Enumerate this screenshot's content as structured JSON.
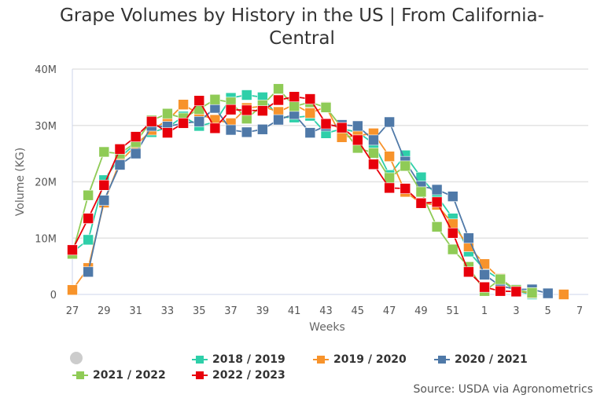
{
  "title_lines": [
    "Grape Volumes by History in the US | From California-",
    "Central"
  ],
  "source": "Source: USDA via Agronometrics",
  "chart_data": {
    "type": "line",
    "title": "Grape Volumes by History in the US | From California-Central",
    "xlabel": "Weeks",
    "ylabel": "Volume (KG)",
    "ylim": [
      0,
      40000000
    ],
    "yticks": [
      0,
      10000000,
      20000000,
      30000000,
      40000000
    ],
    "ytick_labels": [
      "0",
      "10M",
      "20M",
      "30M",
      "40M"
    ],
    "x": [
      27,
      28,
      29,
      30,
      31,
      32,
      33,
      34,
      35,
      36,
      37,
      38,
      39,
      40,
      41,
      42,
      43,
      44,
      45,
      46,
      47,
      48,
      49,
      50,
      51,
      52,
      1,
      2,
      3,
      4,
      5,
      6,
      7
    ],
    "xtick_labels": [
      "27",
      "29",
      "31",
      "33",
      "35",
      "37",
      "39",
      "41",
      "43",
      "45",
      "47",
      "49",
      "51",
      "1",
      "3",
      "5",
      "7"
    ],
    "grid": "horizontal",
    "legend_position": "bottom",
    "series": [
      {
        "name": "2018 / 2019",
        "color": "#2ecfa9",
        "values": [
          7.5,
          9.7,
          20.3,
          24.3,
          26.8,
          28.8,
          29.6,
          31.6,
          29.9,
          30.6,
          34.9,
          35.4,
          35.0,
          31.5,
          31.4,
          31.7,
          28.6,
          29.4,
          28.8,
          26.8,
          21.2,
          24.7,
          20.8,
          17.5,
          13.5,
          7.6,
          4.4,
          2.6,
          0.6,
          0.0,
          null,
          null,
          null
        ]
      },
      {
        "name": "2019 / 2020",
        "color": "#f7932b",
        "values": [
          0.8,
          4.7,
          16.3,
          23.6,
          26.4,
          29.2,
          30.9,
          33.7,
          32.0,
          31.0,
          30.4,
          33.1,
          33.4,
          32.4,
          33.7,
          32.2,
          33.3,
          27.9,
          28.2,
          28.6,
          24.5,
          18.2,
          16.2,
          15.9,
          12.5,
          8.5,
          5.4,
          2.8,
          0.7,
          0.2,
          null,
          0.0,
          null
        ]
      },
      {
        "name": "2020 / 2021",
        "color": "#4f79a8",
        "values": [
          null,
          4.0,
          16.7,
          23.0,
          25.0,
          29.9,
          29.8,
          30.4,
          30.7,
          33.1,
          29.2,
          28.8,
          29.3,
          31.0,
          32.0,
          28.7,
          29.9,
          30.1,
          29.9,
          27.4,
          30.6,
          23.6,
          19.2,
          18.6,
          17.4,
          10.0,
          3.5,
          1.5,
          0.9,
          0.9,
          0.2,
          null,
          null
        ]
      },
      {
        "name": "2021 / 2022",
        "color": "#8fcb56",
        "values": [
          7.2,
          17.6,
          25.3,
          25.0,
          27.0,
          30.9,
          32.1,
          31.3,
          32.9,
          34.6,
          34.1,
          31.2,
          33.6,
          36.5,
          33.4,
          34.1,
          33.2,
          29.6,
          26.0,
          25.1,
          20.7,
          22.8,
          18.2,
          12.0,
          8.0,
          4.9,
          0.6,
          2.7,
          0.8,
          0.3,
          null,
          null,
          null
        ]
      },
      {
        "name": "2022 / 2023",
        "color": "#e8000b",
        "values": [
          7.9,
          13.5,
          19.4,
          25.8,
          28.0,
          30.7,
          28.7,
          30.4,
          34.4,
          29.5,
          32.8,
          32.7,
          32.6,
          34.5,
          35.1,
          34.7,
          30.3,
          29.6,
          27.4,
          23.1,
          18.9,
          18.8,
          16.2,
          16.4,
          10.9,
          4.0,
          1.3,
          0.6,
          0.5,
          null,
          null,
          null,
          null
        ]
      }
    ],
    "value_unit": "M"
  },
  "legend": {
    "toggle_all_color": "#cccccc",
    "items": [
      "2018 / 2019",
      "2019 / 2020",
      "2020 / 2021",
      "2021 / 2022",
      "2022 / 2023"
    ]
  }
}
